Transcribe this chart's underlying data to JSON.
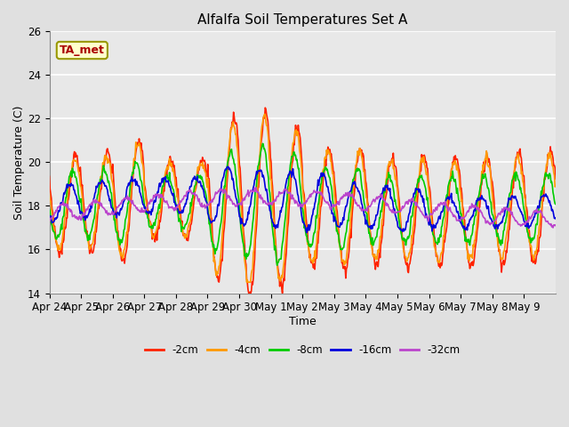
{
  "title": "Alfalfa Soil Temperatures Set A",
  "xlabel": "Time",
  "ylabel": "Soil Temperature (C)",
  "ylim": [
    14,
    26
  ],
  "fig_bg": "#e0e0e0",
  "plot_bg": "#e8e8e8",
  "grid_color": "#ffffff",
  "annotation_label": "TA_met",
  "annotation_color": "#aa0000",
  "annotation_bg": "#ffffcc",
  "annotation_border": "#999900",
  "series": {
    "-2cm": {
      "color": "#ff2200",
      "lw": 1.2
    },
    "-4cm": {
      "color": "#ff9900",
      "lw": 1.2
    },
    "-8cm": {
      "color": "#00cc00",
      "lw": 1.2
    },
    "-16cm": {
      "color": "#0000dd",
      "lw": 1.2
    },
    "-32cm": {
      "color": "#bb44cc",
      "lw": 1.2
    }
  },
  "x_tick_labels": [
    "Apr 24",
    "Apr 25",
    "Apr 26",
    "Apr 27",
    "Apr 28",
    "Apr 29",
    "Apr 30",
    "May 1",
    "May 2",
    "May 3",
    "May 4",
    "May 5",
    "May 6",
    "May 7",
    "May 8",
    "May 9"
  ],
  "yticks": [
    14,
    16,
    18,
    20,
    22,
    24,
    26
  ],
  "days": 16
}
